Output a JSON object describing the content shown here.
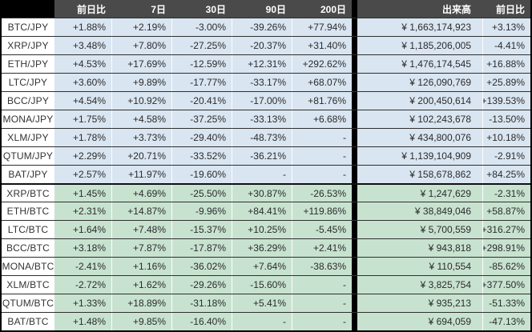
{
  "columns": {
    "corner": "",
    "change_1d": "前日比",
    "d7": "7日",
    "d30": "30日",
    "d90": "90日",
    "d200": "200日",
    "volume": "出来高",
    "volume_change": "前日比"
  },
  "colors": {
    "header_bg": "#4a4a4a",
    "header_text": "#ffffff",
    "corner_bg": "#000000",
    "jpy_row_bg": "#d9e5f1",
    "btc_row_bg": "#c8e2d0",
    "pair_cell_bg": "#ffffff",
    "divider_bg": "#000000",
    "row_border": "#2f2f2f",
    "section_border": "#111111",
    "text": "#2b2b2b"
  },
  "sections": [
    {
      "name": "jpy-pairs",
      "rows": [
        {
          "pair": "BTC/JPY",
          "change_1d": "+1.88%",
          "d7": "+2.19%",
          "d30": "-3.00%",
          "d90": "-39.26%",
          "d200": "+77.94%",
          "volume": "¥ 1,663,174,923",
          "volume_change": "+3.13%"
        },
        {
          "pair": "XRP/JPY",
          "change_1d": "+3.48%",
          "d7": "+7.80%",
          "d30": "-27.25%",
          "d90": "-20.37%",
          "d200": "+31.40%",
          "volume": "¥ 1,185,206,005",
          "volume_change": "-4.41%"
        },
        {
          "pair": "ETH/JPY",
          "change_1d": "+4.53%",
          "d7": "+17.69%",
          "d30": "-12.59%",
          "d90": "+12.31%",
          "d200": "+292.62%",
          "volume": "¥ 1,476,174,545",
          "volume_change": "+16.88%"
        },
        {
          "pair": "LTC/JPY",
          "change_1d": "+3.60%",
          "d7": "+9.89%",
          "d30": "-17.77%",
          "d90": "-33.17%",
          "d200": "+68.07%",
          "volume": "¥ 126,090,769",
          "volume_change": "+25.89%"
        },
        {
          "pair": "BCC/JPY",
          "change_1d": "+4.54%",
          "d7": "+10.92%",
          "d30": "-20.41%",
          "d90": "-17.00%",
          "d200": "+81.76%",
          "volume": "¥ 200,450,614",
          "volume_change": "+139.53%"
        },
        {
          "pair": "MONA/JPY",
          "change_1d": "+1.75%",
          "d7": "+4.58%",
          "d30": "-37.25%",
          "d90": "-33.13%",
          "d200": "+6.68%",
          "volume": "¥ 102,243,678",
          "volume_change": "-13.50%"
        },
        {
          "pair": "XLM/JPY",
          "change_1d": "+1.78%",
          "d7": "+3.73%",
          "d30": "-29.40%",
          "d90": "-48.73%",
          "d200": "-",
          "volume": "¥ 434,800,076",
          "volume_change": "+10.18%"
        },
        {
          "pair": "QTUM/JPY",
          "change_1d": "+2.29%",
          "d7": "+20.71%",
          "d30": "-33.52%",
          "d90": "-36.21%",
          "d200": "-",
          "volume": "¥ 1,139,104,909",
          "volume_change": "-2.91%"
        },
        {
          "pair": "BAT/JPY",
          "change_1d": "+2.57%",
          "d7": "+11.97%",
          "d30": "-19.60%",
          "d90": "-",
          "d200": "-",
          "volume": "¥ 158,678,862",
          "volume_change": "+84.25%"
        }
      ]
    },
    {
      "name": "btc-pairs",
      "rows": [
        {
          "pair": "XRP/BTC",
          "change_1d": "+1.45%",
          "d7": "+4.69%",
          "d30": "-25.50%",
          "d90": "+30.87%",
          "d200": "-26.53%",
          "volume": "¥ 1,247,629",
          "volume_change": "-2.31%"
        },
        {
          "pair": "ETH/BTC",
          "change_1d": "+2.31%",
          "d7": "+14.87%",
          "d30": "-9.96%",
          "d90": "+84.41%",
          "d200": "+119.86%",
          "volume": "¥ 38,849,046",
          "volume_change": "+58.87%"
        },
        {
          "pair": "LTC/BTC",
          "change_1d": "+1.64%",
          "d7": "+7.48%",
          "d30": "-15.37%",
          "d90": "+10.25%",
          "d200": "-5.45%",
          "volume": "¥ 5,700,559",
          "volume_change": "+316.27%"
        },
        {
          "pair": "BCC/BTC",
          "change_1d": "+3.18%",
          "d7": "+7.87%",
          "d30": "-17.87%",
          "d90": "+36.29%",
          "d200": "+2.41%",
          "volume": "¥ 943,818",
          "volume_change": "+298.91%"
        },
        {
          "pair": "MONA/BTC",
          "change_1d": "-2.41%",
          "d7": "+1.16%",
          "d30": "-36.02%",
          "d90": "+7.64%",
          "d200": "-38.63%",
          "volume": "¥ 110,554",
          "volume_change": "-85.62%"
        },
        {
          "pair": "XLM/BTC",
          "change_1d": "-2.72%",
          "d7": "+1.62%",
          "d30": "-29.26%",
          "d90": "-15.60%",
          "d200": "-",
          "volume": "¥ 3,825,754",
          "volume_change": "+377.50%"
        },
        {
          "pair": "QTUM/BTC",
          "change_1d": "+1.33%",
          "d7": "+18.89%",
          "d30": "-31.18%",
          "d90": "+5.41%",
          "d200": "-",
          "volume": "¥ 935,213",
          "volume_change": "-51.33%"
        },
        {
          "pair": "BAT/BTC",
          "change_1d": "+1.48%",
          "d7": "+9.85%",
          "d30": "-16.40%",
          "d90": "-",
          "d200": "-",
          "volume": "¥ 694,059",
          "volume_change": "-47.13%"
        }
      ]
    }
  ],
  "chart_data": {
    "type": "table",
    "title": "",
    "columns": [
      "",
      "前日比",
      "7日",
      "30日",
      "90日",
      "200日",
      "出来高",
      "前日比"
    ],
    "rows": [
      [
        "BTC/JPY",
        "+1.88%",
        "+2.19%",
        "-3.00%",
        "-39.26%",
        "+77.94%",
        "¥ 1,663,174,923",
        "+3.13%"
      ],
      [
        "XRP/JPY",
        "+3.48%",
        "+7.80%",
        "-27.25%",
        "-20.37%",
        "+31.40%",
        "¥ 1,185,206,005",
        "-4.41%"
      ],
      [
        "ETH/JPY",
        "+4.53%",
        "+17.69%",
        "-12.59%",
        "+12.31%",
        "+292.62%",
        "¥ 1,476,174,545",
        "+16.88%"
      ],
      [
        "LTC/JPY",
        "+3.60%",
        "+9.89%",
        "-17.77%",
        "-33.17%",
        "+68.07%",
        "¥ 126,090,769",
        "+25.89%"
      ],
      [
        "BCC/JPY",
        "+4.54%",
        "+10.92%",
        "-20.41%",
        "-17.00%",
        "+81.76%",
        "¥ 200,450,614",
        "+139.53%"
      ],
      [
        "MONA/JPY",
        "+1.75%",
        "+4.58%",
        "-37.25%",
        "-33.13%",
        "+6.68%",
        "¥ 102,243,678",
        "-13.50%"
      ],
      [
        "XLM/JPY",
        "+1.78%",
        "+3.73%",
        "-29.40%",
        "-48.73%",
        "-",
        "¥ 434,800,076",
        "+10.18%"
      ],
      [
        "QTUM/JPY",
        "+2.29%",
        "+20.71%",
        "-33.52%",
        "-36.21%",
        "-",
        "¥ 1,139,104,909",
        "-2.91%"
      ],
      [
        "BAT/JPY",
        "+2.57%",
        "+11.97%",
        "-19.60%",
        "-",
        "-",
        "¥ 158,678,862",
        "+84.25%"
      ],
      [
        "XRP/BTC",
        "+1.45%",
        "+4.69%",
        "-25.50%",
        "+30.87%",
        "-26.53%",
        "¥ 1,247,629",
        "-2.31%"
      ],
      [
        "ETH/BTC",
        "+2.31%",
        "+14.87%",
        "-9.96%",
        "+84.41%",
        "+119.86%",
        "¥ 38,849,046",
        "+58.87%"
      ],
      [
        "LTC/BTC",
        "+1.64%",
        "+7.48%",
        "-15.37%",
        "+10.25%",
        "-5.45%",
        "¥ 5,700,559",
        "+316.27%"
      ],
      [
        "BCC/BTC",
        "+3.18%",
        "+7.87%",
        "-17.87%",
        "+36.29%",
        "+2.41%",
        "¥ 943,818",
        "+298.91%"
      ],
      [
        "MONA/BTC",
        "-2.41%",
        "+1.16%",
        "-36.02%",
        "+7.64%",
        "-38.63%",
        "¥ 110,554",
        "-85.62%"
      ],
      [
        "XLM/BTC",
        "-2.72%",
        "+1.62%",
        "-29.26%",
        "-15.60%",
        "-",
        "¥ 3,825,754",
        "+377.50%"
      ],
      [
        "QTUM/BTC",
        "+1.33%",
        "+18.89%",
        "-31.18%",
        "+5.41%",
        "-",
        "¥ 935,213",
        "-51.33%"
      ],
      [
        "BAT/BTC",
        "+1.48%",
        "+9.85%",
        "-16.40%",
        "-",
        "-",
        "¥ 694,059",
        "-47.13%"
      ]
    ]
  }
}
